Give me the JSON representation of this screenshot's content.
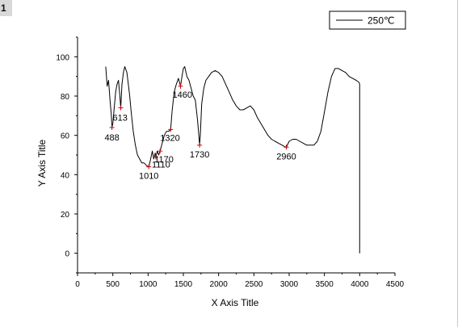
{
  "figure_number": "1",
  "chart_data": {
    "type": "line",
    "title": "",
    "xlabel": "X Axis Title",
    "ylabel": "Y Axis Title",
    "xlim": [
      0,
      4500
    ],
    "ylim": [
      -10,
      110
    ],
    "x_ticks": [
      "0",
      "500",
      "1000",
      "1500",
      "2000",
      "2500",
      "3000",
      "3500",
      "4000",
      "4500"
    ],
    "y_ticks": [
      "0",
      "20",
      "40",
      "60",
      "80",
      "100"
    ],
    "grid": false,
    "legend_position": "top-right",
    "line_color": "#000000",
    "marker_color": "#cc0000",
    "series": [
      {
        "name": "250℃",
        "x": [
          400,
          420,
          440,
          460,
          480,
          488,
          500,
          520,
          540,
          560,
          580,
          600,
          613,
          630,
          650,
          670,
          700,
          720,
          740,
          760,
          790,
          820,
          850,
          880,
          910,
          940,
          970,
          1000,
          1010,
          1030,
          1060,
          1080,
          1100,
          1110,
          1130,
          1150,
          1170,
          1200,
          1230,
          1260,
          1290,
          1320,
          1340,
          1370,
          1400,
          1430,
          1460,
          1480,
          1500,
          1520,
          1550,
          1580,
          1610,
          1640,
          1670,
          1700,
          1720,
          1730,
          1740,
          1760,
          1790,
          1820,
          1860,
          1900,
          1950,
          2000,
          2050,
          2100,
          2150,
          2200,
          2250,
          2300,
          2350,
          2400,
          2450,
          2500,
          2550,
          2600,
          2650,
          2700,
          2750,
          2800,
          2850,
          2900,
          2950,
          2960,
          3000,
          3050,
          3100,
          3150,
          3200,
          3250,
          3300,
          3350,
          3400,
          3450,
          3500,
          3550,
          3600,
          3650,
          3700,
          3750,
          3800,
          3850,
          3900,
          3950,
          3990,
          4000,
          4000
        ],
        "y": [
          95,
          85,
          88,
          78,
          70,
          64,
          66,
          74,
          82,
          86,
          88,
          80,
          74,
          86,
          92,
          95,
          92,
          86,
          80,
          72,
          62,
          55,
          50,
          48,
          46,
          46,
          45,
          44,
          44,
          47,
          52,
          48,
          51,
          49,
          52,
          50,
          52,
          56,
          60,
          62,
          62,
          63,
          72,
          82,
          86,
          89,
          85,
          90,
          94,
          95,
          90,
          88,
          84,
          80,
          78,
          68,
          60,
          55,
          60,
          76,
          84,
          88,
          90,
          92,
          93,
          92,
          90,
          86,
          82,
          78,
          75,
          73,
          73,
          74,
          75,
          73,
          69,
          66,
          63,
          60,
          58,
          57,
          56,
          55,
          54,
          54,
          57,
          58,
          58,
          57,
          56,
          55,
          55,
          55,
          57,
          62,
          72,
          82,
          90,
          94,
          94,
          93,
          92,
          90,
          89,
          88,
          87,
          86,
          0
        ]
      }
    ],
    "annotations": [
      {
        "label": "488",
        "x": 488,
        "y": 64,
        "text_dx": 0,
        "text_dy": 16,
        "anchor": "middle"
      },
      {
        "label": "613",
        "x": 613,
        "y": 74,
        "text_dx": -10,
        "text_dy": 16,
        "anchor": "start"
      },
      {
        "label": "1010",
        "x": 1010,
        "y": 44,
        "text_dx": 0,
        "text_dy": 15,
        "anchor": "middle"
      },
      {
        "label": "1110",
        "x": 1110,
        "y": 49,
        "text_dx": -5,
        "text_dy": 13,
        "anchor": "start"
      },
      {
        "label": "1170",
        "x": 1170,
        "y": 52,
        "text_dx": -7,
        "text_dy": 14,
        "anchor": "start"
      },
      {
        "label": "1320",
        "x": 1320,
        "y": 63,
        "text_dx": -13,
        "text_dy": 14,
        "anchor": "start"
      },
      {
        "label": "1460",
        "x": 1460,
        "y": 85,
        "text_dx": -10,
        "text_dy": 14,
        "anchor": "start"
      },
      {
        "label": "1730",
        "x": 1730,
        "y": 55,
        "text_dx": 0,
        "text_dy": 15,
        "anchor": "middle"
      },
      {
        "label": "2960",
        "x": 2960,
        "y": 54,
        "text_dx": 0,
        "text_dy": 15,
        "anchor": "middle"
      }
    ]
  }
}
